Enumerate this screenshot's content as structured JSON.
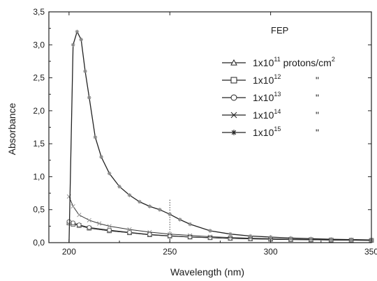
{
  "chart_data": {
    "type": "line",
    "title": "",
    "annotation": "FEP",
    "xlabel": "Wavelength (nm)",
    "ylabel": "Absorbance",
    "xlim": [
      190,
      350
    ],
    "ylim": [
      0,
      3.5
    ],
    "x_ticks": [
      200,
      250,
      300,
      350
    ],
    "x_tick_labels": [
      "200",
      "250",
      "300",
      "350"
    ],
    "y_ticks": [
      0,
      0.5,
      1.0,
      1.5,
      2.0,
      2.5,
      3.0,
      3.5
    ],
    "y_tick_labels": [
      "0,0",
      "0,5",
      "1,0",
      "1,5",
      "2,0",
      "2,5",
      "3,0",
      "3,5"
    ],
    "vertical_marker_x": 250,
    "series": [
      {
        "name_base": "1x10",
        "name_exp": "11",
        "name_suffix": " protons/cm",
        "name_suffix_exp": "2",
        "marker": "triangle",
        "x": [
          200,
          202,
          205,
          210,
          220,
          230,
          240,
          250,
          260,
          270,
          280,
          290,
          300,
          310,
          320,
          330,
          340,
          350
        ],
        "y": [
          0.3,
          0.28,
          0.26,
          0.22,
          0.18,
          0.15,
          0.12,
          0.1,
          0.085,
          0.075,
          0.065,
          0.058,
          0.052,
          0.047,
          0.043,
          0.04,
          0.037,
          0.035
        ]
      },
      {
        "name_base": "1x10",
        "name_exp": "12",
        "name_suffix": "",
        "name_suffix_exp": "",
        "ditto": "\"",
        "marker": "square",
        "x": [
          200,
          202,
          205,
          210,
          220,
          230,
          240,
          250,
          260,
          270,
          280,
          290,
          300,
          310,
          320,
          330,
          340,
          350
        ],
        "y": [
          0.3,
          0.28,
          0.26,
          0.22,
          0.18,
          0.15,
          0.12,
          0.1,
          0.085,
          0.075,
          0.065,
          0.058,
          0.052,
          0.047,
          0.043,
          0.04,
          0.037,
          0.035
        ]
      },
      {
        "name_base": "1x10",
        "name_exp": "13",
        "name_suffix": "",
        "name_suffix_exp": "",
        "ditto": "\"",
        "marker": "circle",
        "x": [
          200,
          202,
          205,
          210,
          220,
          230,
          240,
          250,
          260,
          270,
          280,
          290,
          300,
          310,
          320,
          330,
          340,
          350
        ],
        "y": [
          0.32,
          0.3,
          0.27,
          0.23,
          0.19,
          0.155,
          0.125,
          0.105,
          0.088,
          0.077,
          0.067,
          0.06,
          0.054,
          0.049,
          0.045,
          0.041,
          0.038,
          0.036
        ]
      },
      {
        "name_base": "1x10",
        "name_exp": "14",
        "name_suffix": "",
        "name_suffix_exp": "",
        "ditto": "\"",
        "marker": "x",
        "x": [
          200,
          202,
          205,
          210,
          215,
          220,
          230,
          240,
          250,
          260,
          270,
          280,
          290,
          300,
          310,
          320,
          330,
          340,
          350
        ],
        "y": [
          0.7,
          0.55,
          0.42,
          0.34,
          0.29,
          0.25,
          0.2,
          0.16,
          0.13,
          0.11,
          0.09,
          0.078,
          0.068,
          0.06,
          0.053,
          0.048,
          0.044,
          0.04,
          0.037
        ]
      },
      {
        "name_base": "1x10",
        "name_exp": "15",
        "name_suffix": "",
        "name_suffix_exp": "",
        "ditto": "\"",
        "marker": "asterisk",
        "x": [
          200,
          202,
          204,
          206,
          208,
          210,
          213,
          216,
          220,
          225,
          230,
          235,
          240,
          245,
          250,
          255,
          260,
          270,
          280,
          290,
          300,
          310,
          320,
          330,
          340,
          350
        ],
        "y": [
          0.0,
          3.0,
          3.2,
          3.08,
          2.6,
          2.2,
          1.6,
          1.3,
          1.05,
          0.85,
          0.72,
          0.62,
          0.55,
          0.5,
          0.43,
          0.35,
          0.28,
          0.18,
          0.13,
          0.1,
          0.085,
          0.07,
          0.06,
          0.052,
          0.046,
          0.04
        ]
      }
    ],
    "legend_position": "top-right"
  }
}
